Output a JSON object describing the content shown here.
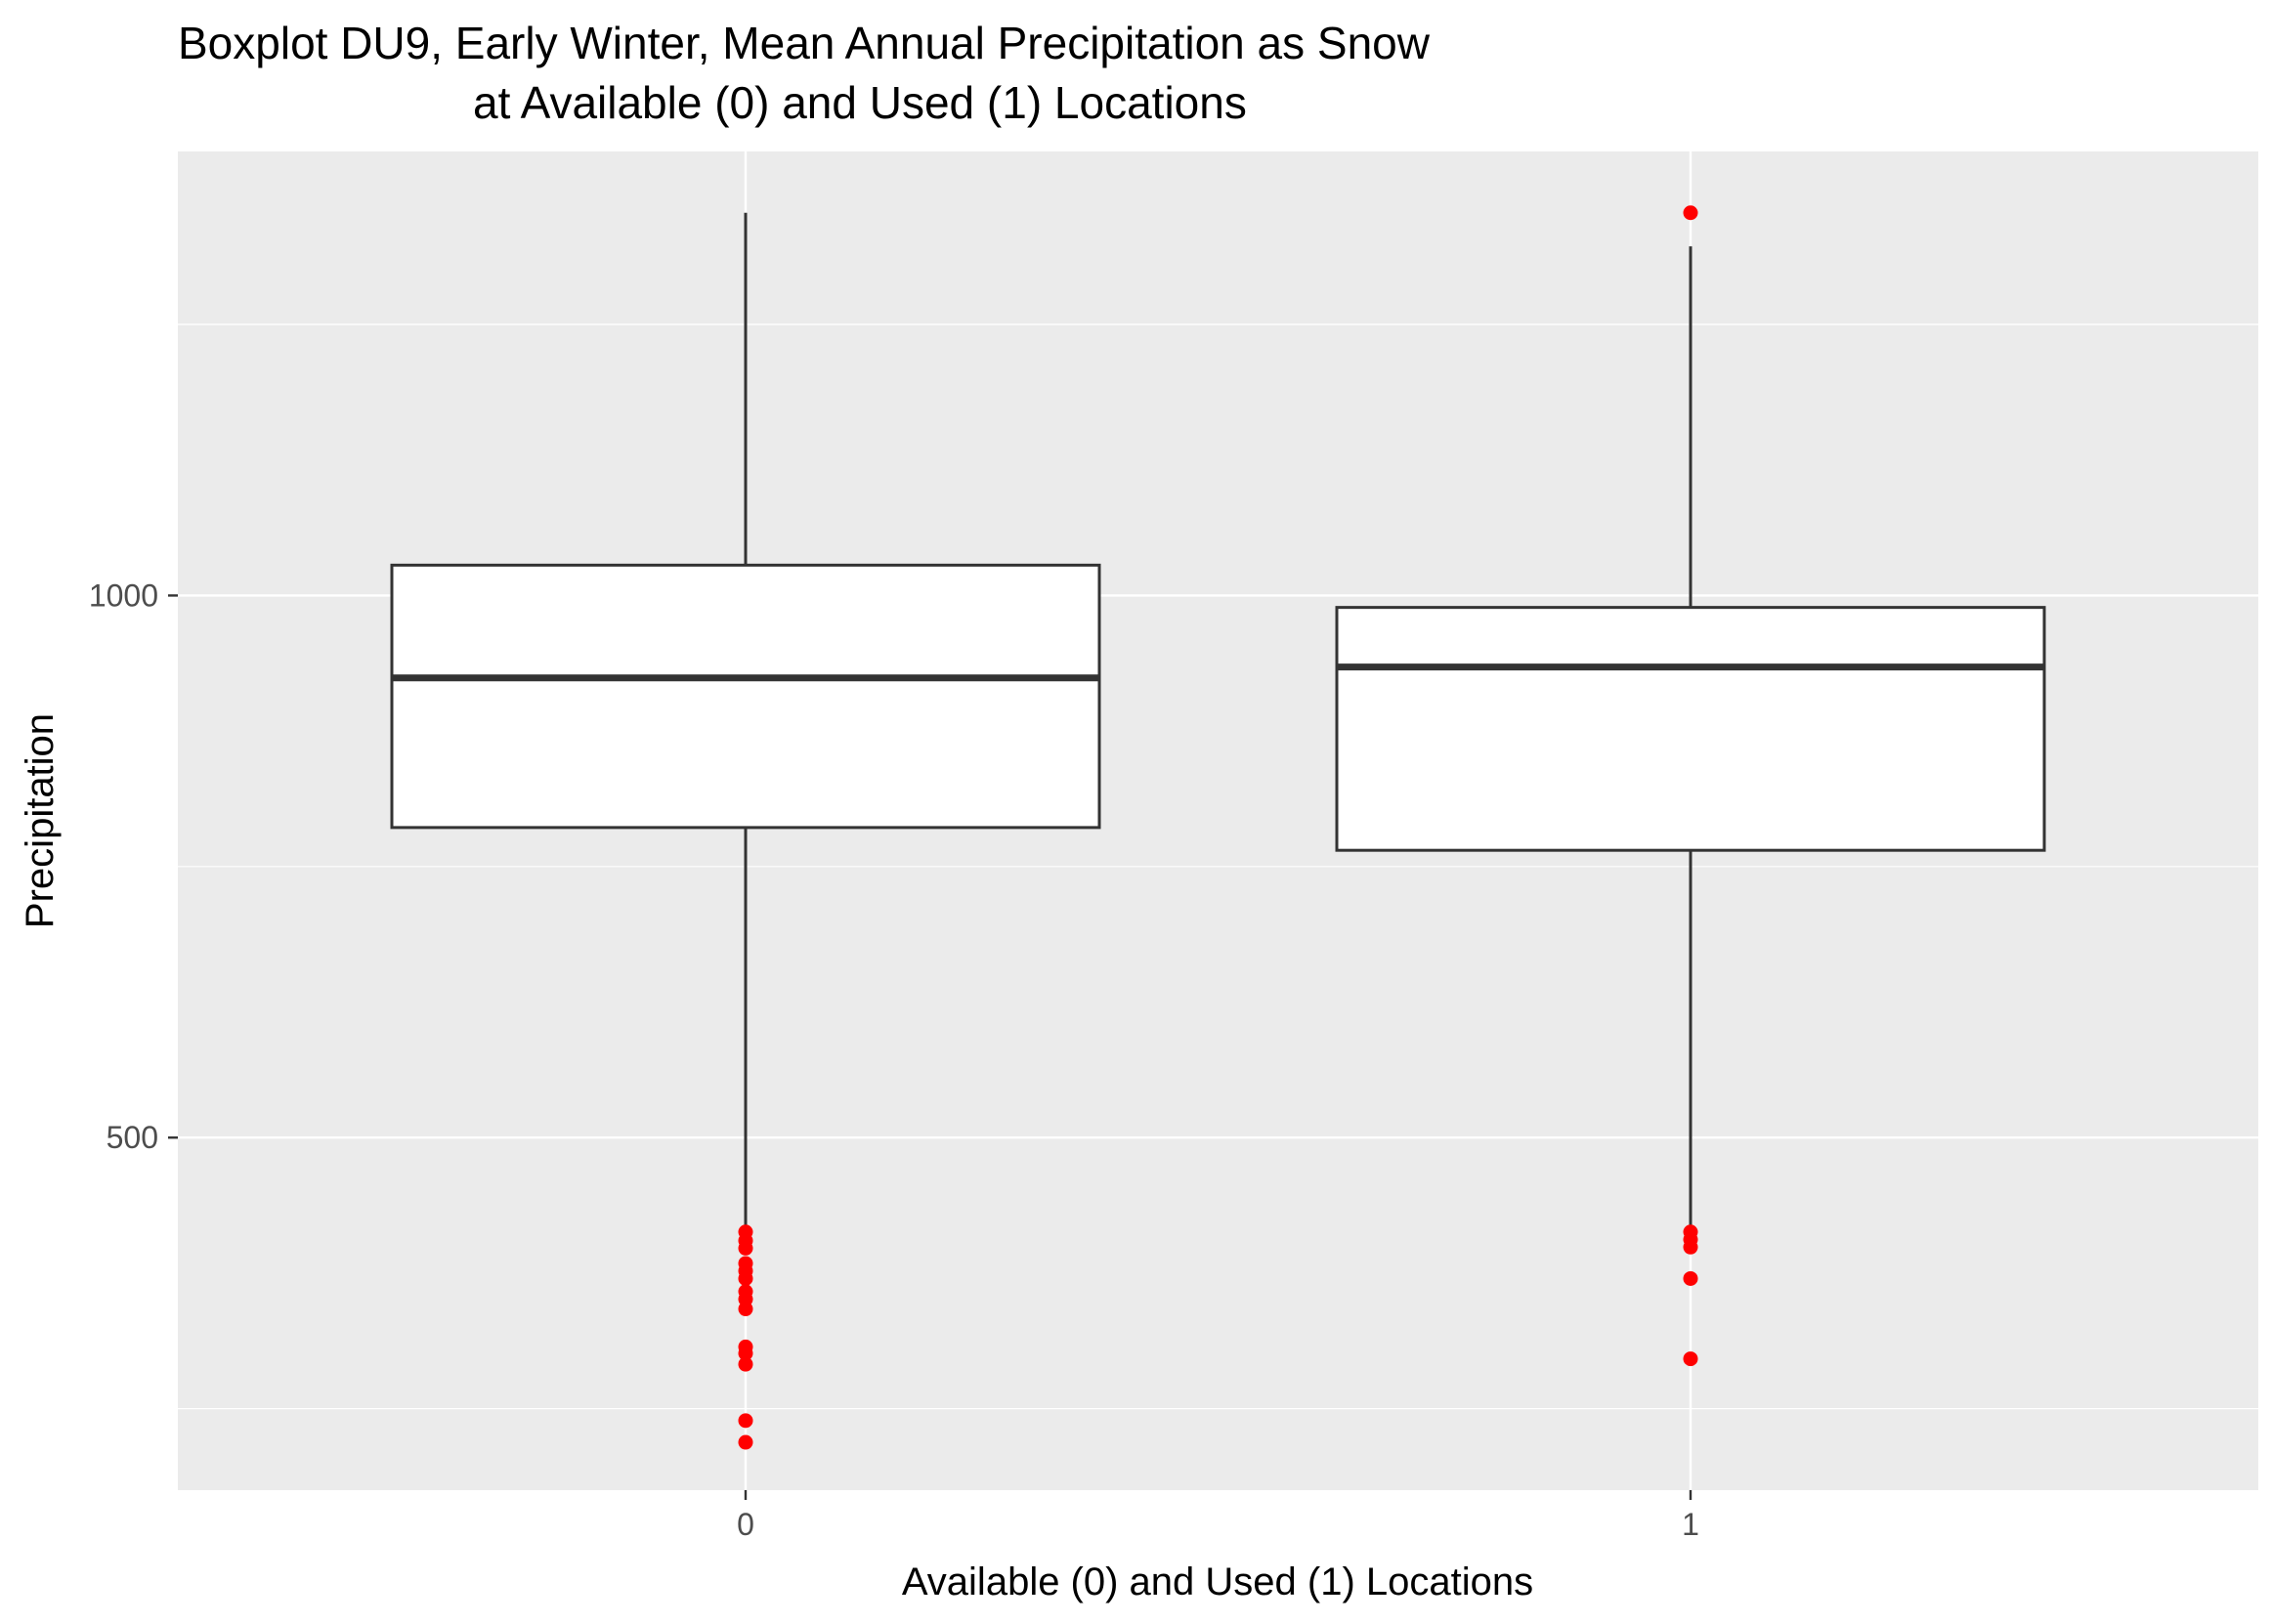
{
  "chart_data": {
    "type": "boxplot",
    "title_lines": [
      "Boxplot DU9, Early Winter, Mean Annual Precipitation as Snow",
      "at Available (0) and Used (1) Locations"
    ],
    "xlabel": "Available (0) and Used (1) Locations",
    "ylabel": "Precipitation",
    "ylim": [
      170,
      1410
    ],
    "y_ticks": [
      500,
      1000
    ],
    "y_minor_gridlines": [
      250,
      750,
      1250
    ],
    "categories": [
      "0",
      "1"
    ],
    "boxes": [
      {
        "category": "0",
        "whisker_low": 413,
        "q1": 786,
        "median": 924,
        "q3": 1028,
        "whisker_high": 1353,
        "outliers": [
          413,
          405,
          398,
          384,
          377,
          370,
          358,
          351,
          342,
          307,
          301,
          291,
          239,
          219
        ]
      },
      {
        "category": "1",
        "whisker_low": 413,
        "q1": 765,
        "median": 934,
        "q3": 989,
        "whisker_high": 1322,
        "outliers": [
          1353,
          413,
          406,
          399,
          370,
          296
        ]
      }
    ],
    "outlier_color": "#ff0000",
    "panel_background": "#ebebeb",
    "grid_color": "#ffffff",
    "box_fill": "#ffffff",
    "box_line_color": "#333333"
  }
}
